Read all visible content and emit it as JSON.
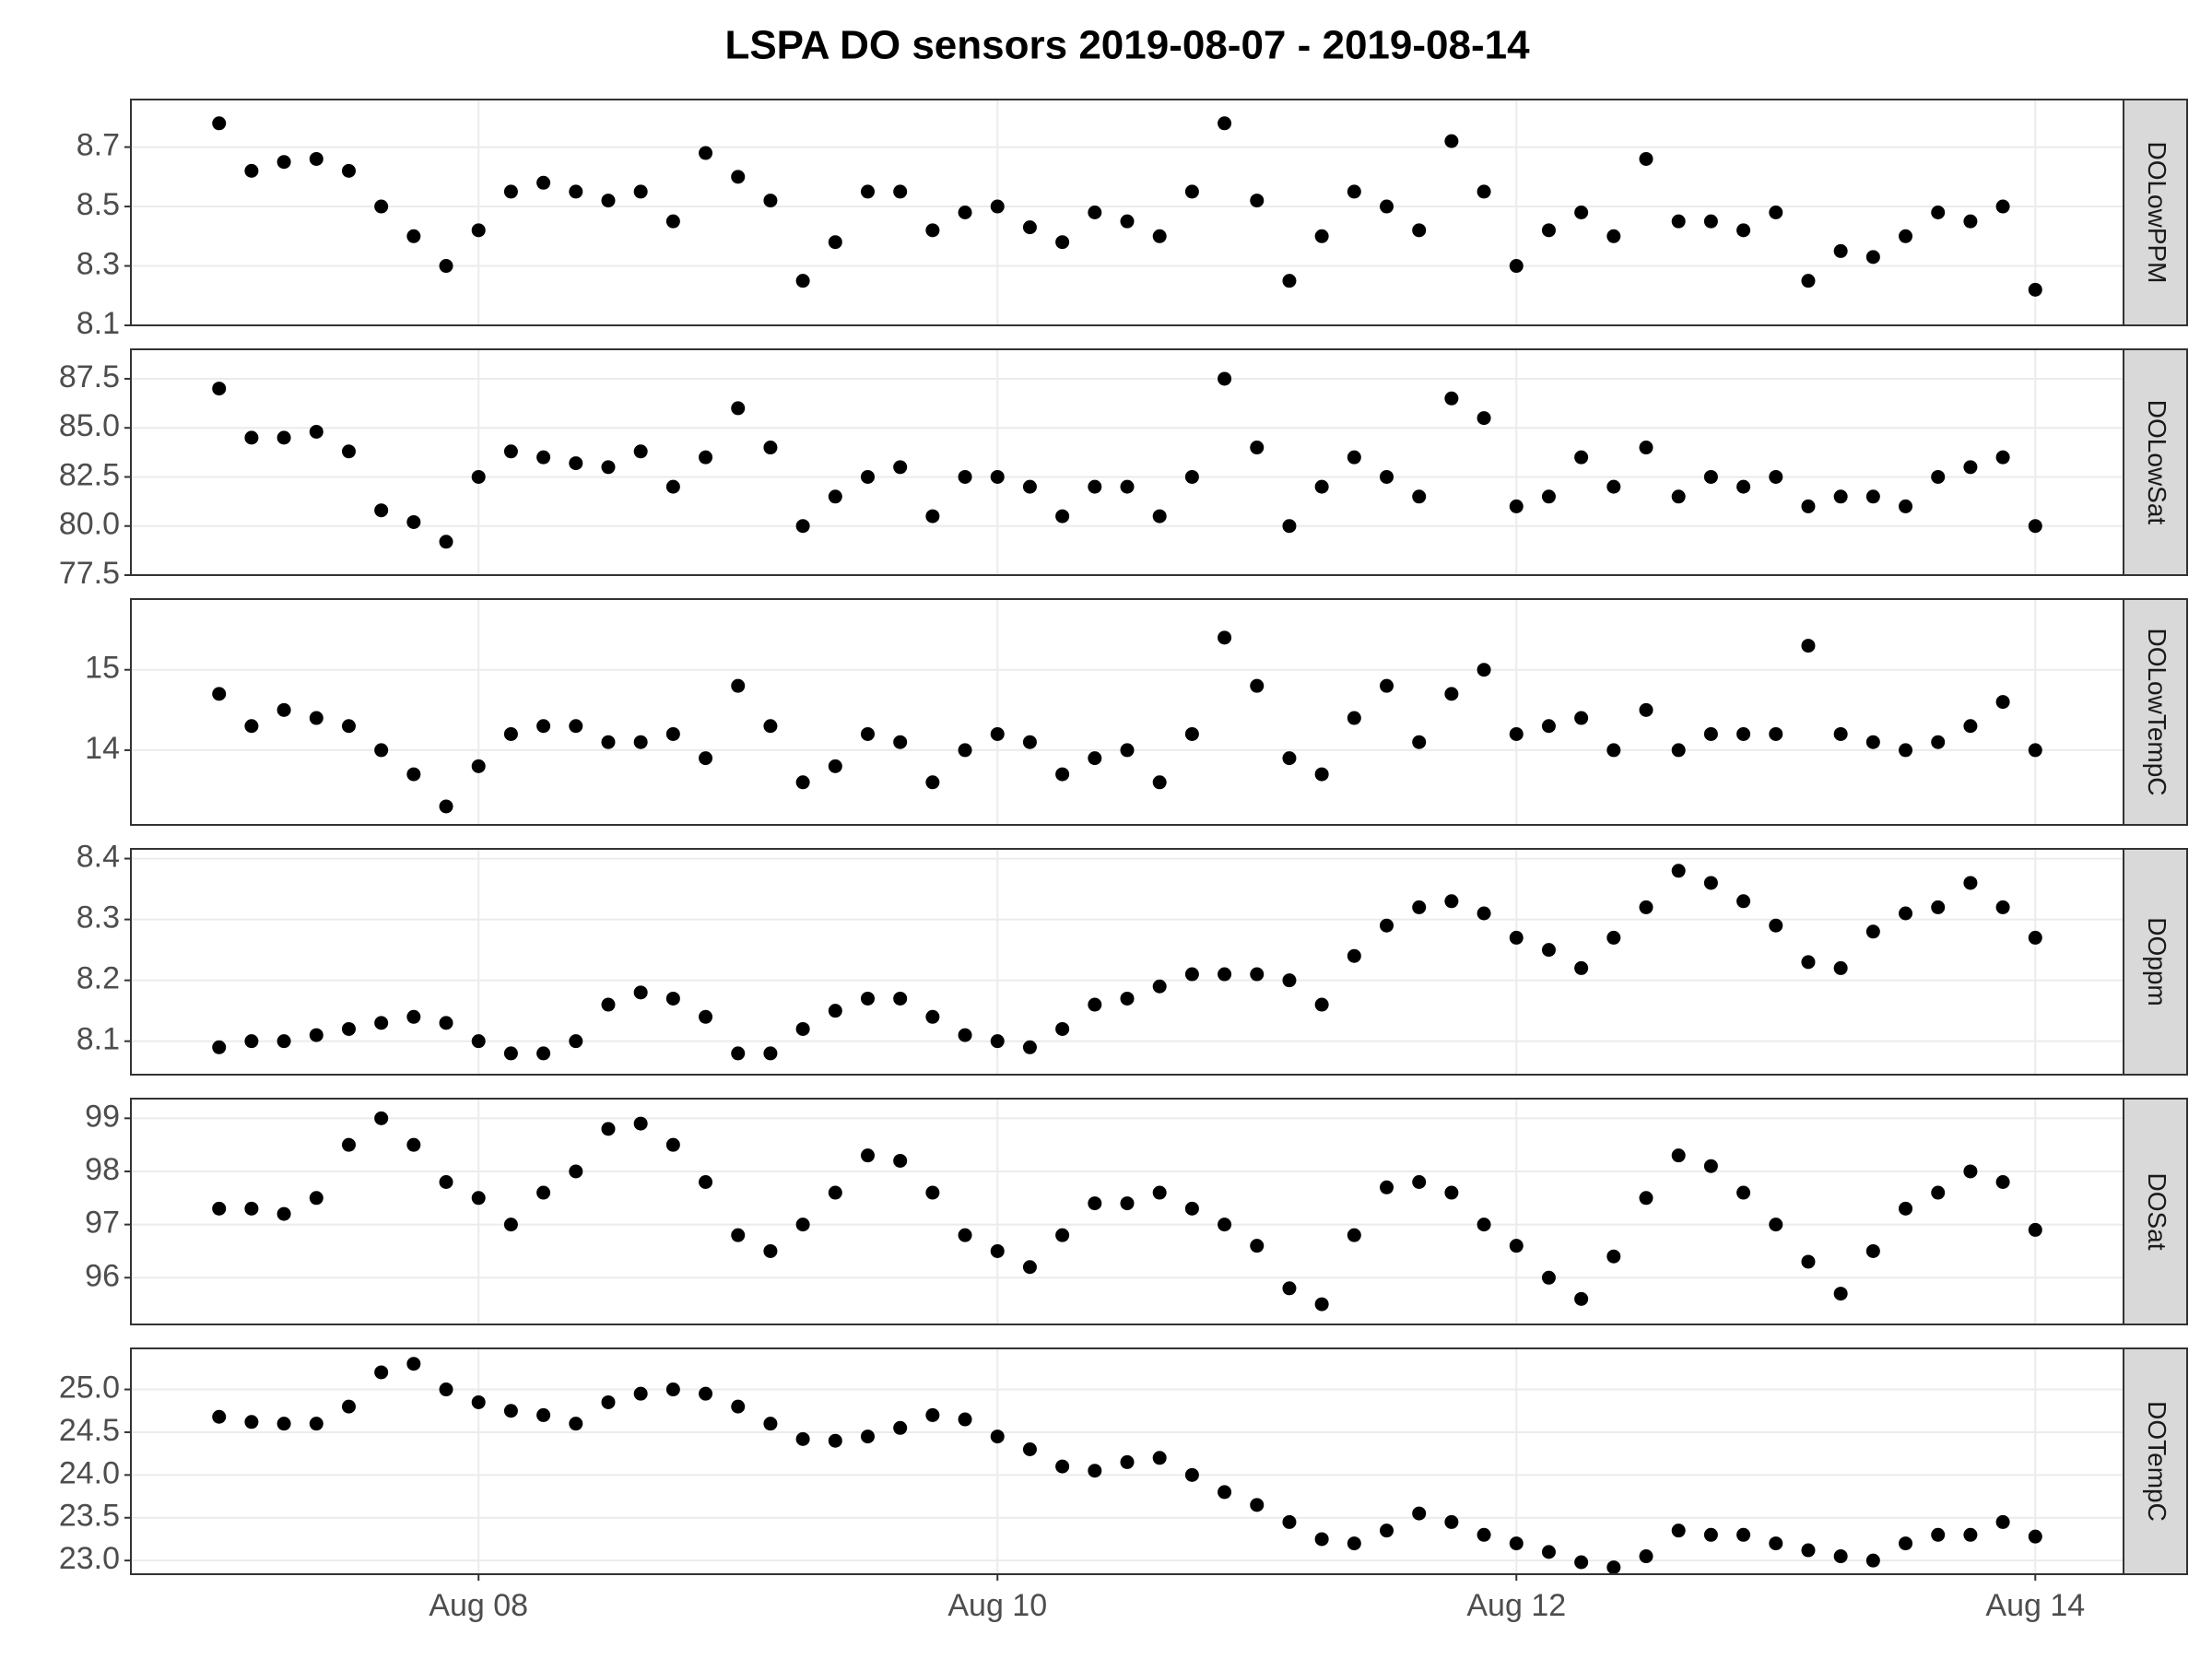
{
  "title": "LSPA DO sensors 2019-08-07 - 2019-08-14",
  "x": [
    7,
    7.125,
    7.25,
    7.375,
    7.5,
    7.625,
    7.75,
    7.875,
    8,
    8.125,
    8.25,
    8.375,
    8.5,
    8.625,
    8.75,
    8.875,
    9,
    9.125,
    9.25,
    9.375,
    9.5,
    9.625,
    9.75,
    9.875,
    10,
    10.125,
    10.25,
    10.375,
    10.5,
    10.625,
    10.75,
    10.875,
    11,
    11.125,
    11.25,
    11.375,
    11.5,
    11.625,
    11.75,
    11.875,
    12,
    12.125,
    12.25,
    12.375,
    12.5,
    12.625,
    12.75,
    12.875,
    13,
    13.125,
    13.25,
    13.375,
    13.5,
    13.625,
    13.75,
    13.875,
    14
  ],
  "xlim": [
    6.66,
    14.34
  ],
  "xticks": [
    {
      "value": 8,
      "label": "Aug 08"
    },
    {
      "value": 10,
      "label": "Aug 10"
    },
    {
      "value": 12,
      "label": "Aug 12"
    },
    {
      "value": 14,
      "label": "Aug 14"
    }
  ],
  "grid": true,
  "color": "#000000",
  "chart_data": [
    {
      "type": "scatter",
      "label": "DOLowPPM",
      "ylim": [
        8.1,
        8.86
      ],
      "yticks": [
        8.1,
        8.3,
        8.5,
        8.7
      ],
      "values": [
        8.78,
        8.62,
        8.65,
        8.66,
        8.62,
        8.5,
        8.4,
        8.3,
        8.42,
        8.55,
        8.58,
        8.55,
        8.52,
        8.55,
        8.45,
        8.68,
        8.6,
        8.52,
        8.25,
        8.38,
        8.55,
        8.55,
        8.42,
        8.48,
        8.5,
        8.43,
        8.38,
        8.48,
        8.45,
        8.4,
        8.55,
        8.78,
        8.52,
        8.25,
        8.4,
        8.55,
        8.5,
        8.42,
        8.72,
        8.55,
        8.3,
        8.42,
        8.48,
        8.4,
        8.66,
        8.45,
        8.45,
        8.42,
        8.48,
        8.25,
        8.35,
        8.33,
        8.4,
        8.48,
        8.45,
        8.5,
        8.22
      ]
    },
    {
      "type": "scatter",
      "label": "DOLowSat",
      "ylim": [
        77.5,
        89
      ],
      "yticks": [
        77.5,
        {
          "value": 80,
          "label": "80.0"
        },
        82.5,
        {
          "value": 85,
          "label": "85.0"
        },
        87.5
      ],
      "values": [
        87,
        84.5,
        84.5,
        84.8,
        83.8,
        80.8,
        80.2,
        79.2,
        82.5,
        83.8,
        83.5,
        83.2,
        83,
        83.8,
        82,
        83.5,
        86,
        84,
        80,
        81.5,
        82.5,
        83,
        80.5,
        82.5,
        82.5,
        82,
        80.5,
        82,
        82,
        80.5,
        82.5,
        87.5,
        84,
        80,
        82,
        83.5,
        82.5,
        81.5,
        86.5,
        85.5,
        81,
        81.5,
        83.5,
        82,
        84,
        81.5,
        82.5,
        82,
        82.5,
        81,
        81.5,
        81.5,
        81,
        82.5,
        83,
        83.5,
        80
      ]
    },
    {
      "type": "scatter",
      "label": "DOLowTempC",
      "ylim": [
        13.07,
        15.88
      ],
      "yticks": [
        14,
        15
      ],
      "values": [
        14.7,
        14.3,
        14.5,
        14.4,
        14.3,
        14,
        13.7,
        13.3,
        13.8,
        14.2,
        14.3,
        14.3,
        14.1,
        14.1,
        14.2,
        13.9,
        14.8,
        14.3,
        13.6,
        13.8,
        14.2,
        14.1,
        13.6,
        14,
        14.2,
        14.1,
        13.7,
        13.9,
        14,
        13.6,
        14.2,
        15.4,
        14.8,
        13.9,
        13.7,
        14.4,
        14.8,
        14.1,
        14.7,
        15,
        14.2,
        14.3,
        14.4,
        14,
        14.5,
        14,
        14.2,
        14.2,
        14.2,
        15.3,
        14.2,
        14.1,
        14,
        14.1,
        14.3,
        14.6,
        14
      ]
    },
    {
      "type": "scatter",
      "label": "DOppm",
      "ylim": [
        8.045,
        8.416
      ],
      "yticks": [
        8.1,
        8.2,
        8.3,
        8.4
      ],
      "values": [
        8.09,
        8.1,
        8.1,
        8.11,
        8.12,
        8.13,
        8.14,
        8.13,
        8.1,
        8.08,
        8.08,
        8.1,
        8.16,
        8.18,
        8.17,
        8.14,
        8.08,
        8.08,
        8.12,
        8.15,
        8.17,
        8.17,
        8.14,
        8.11,
        8.1,
        8.09,
        8.12,
        8.16,
        8.17,
        8.19,
        8.21,
        8.21,
        8.21,
        8.2,
        8.16,
        8.24,
        8.29,
        8.32,
        8.33,
        8.31,
        8.27,
        8.25,
        8.22,
        8.27,
        8.32,
        8.38,
        8.36,
        8.33,
        8.29,
        8.23,
        8.22,
        8.28,
        8.31,
        8.32,
        8.36,
        8.32,
        8.27
      ]
    },
    {
      "type": "scatter",
      "label": "DOSat",
      "ylim": [
        95.12,
        99.37
      ],
      "yticks": [
        96,
        97,
        98,
        99
      ],
      "values": [
        97.3,
        97.3,
        97.2,
        97.5,
        98.5,
        99,
        98.5,
        97.8,
        97.5,
        97,
        97.6,
        98,
        98.8,
        98.9,
        98.5,
        97.8,
        96.8,
        96.5,
        97,
        97.6,
        98.3,
        98.2,
        97.6,
        96.8,
        96.5,
        96.2,
        96.8,
        97.4,
        97.4,
        97.6,
        97.3,
        97,
        96.6,
        95.8,
        95.5,
        96.8,
        97.7,
        97.8,
        97.6,
        97,
        96.6,
        96,
        95.6,
        96.4,
        97.5,
        98.3,
        98.1,
        97.6,
        97,
        96.3,
        95.7,
        96.5,
        97.3,
        97.6,
        98,
        97.8,
        96.9
      ]
    },
    {
      "type": "scatter",
      "label": "DOTempC",
      "ylim": [
        22.84,
        25.48
      ],
      "yticks": [
        {
          "value": 23,
          "label": "23.0"
        },
        23.5,
        {
          "value": 24,
          "label": "24.0"
        },
        24.5,
        {
          "value": 25,
          "label": "25.0"
        }
      ],
      "values": [
        24.68,
        24.62,
        24.6,
        24.6,
        24.8,
        25.2,
        25.3,
        25,
        24.85,
        24.75,
        24.7,
        24.6,
        24.85,
        24.95,
        25,
        24.95,
        24.8,
        24.6,
        24.42,
        24.4,
        24.45,
        24.55,
        24.7,
        24.65,
        24.45,
        24.3,
        24.1,
        24.05,
        24.15,
        24.2,
        24,
        23.8,
        23.65,
        23.45,
        23.25,
        23.2,
        23.35,
        23.55,
        23.45,
        23.3,
        23.2,
        23.1,
        22.98,
        22.92,
        23.05,
        23.35,
        23.3,
        23.3,
        23.2,
        23.12,
        23.05,
        23,
        23.2,
        23.3,
        23.3,
        23.45,
        23.28
      ]
    }
  ]
}
